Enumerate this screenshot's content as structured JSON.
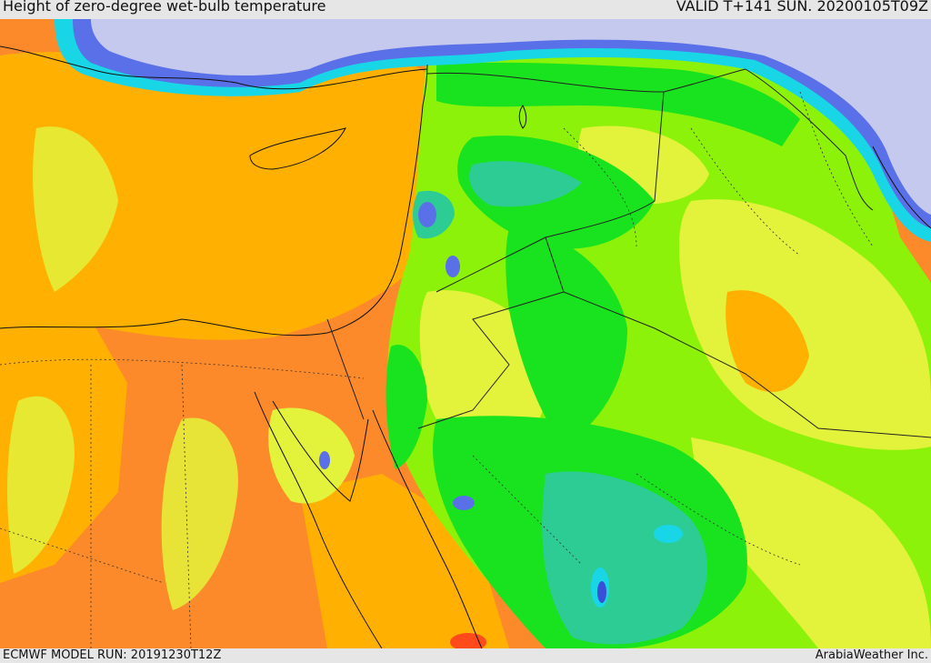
{
  "header": {
    "title": "Height of zero-degree wet-bulb temperature",
    "valid": "VALID T+141 SUN. 20200105T09Z"
  },
  "footer": {
    "model_run": "ECMWF MODEL RUN: 20191230T12Z",
    "credit": "ArabiaWeather Inc."
  },
  "colors": {
    "sea_cold": "#c6c9ee",
    "blue": "#5a70e8",
    "dark_blue": "#3a4fd8",
    "cyan": "#19d6e6",
    "teal": "#2ecc95",
    "green": "#19e21e",
    "lime": "#8df20a",
    "yellow": "#e3f23a",
    "light_orange": "#ffb000",
    "orange": "#fd8a2a",
    "red": "#ff4a1c"
  }
}
